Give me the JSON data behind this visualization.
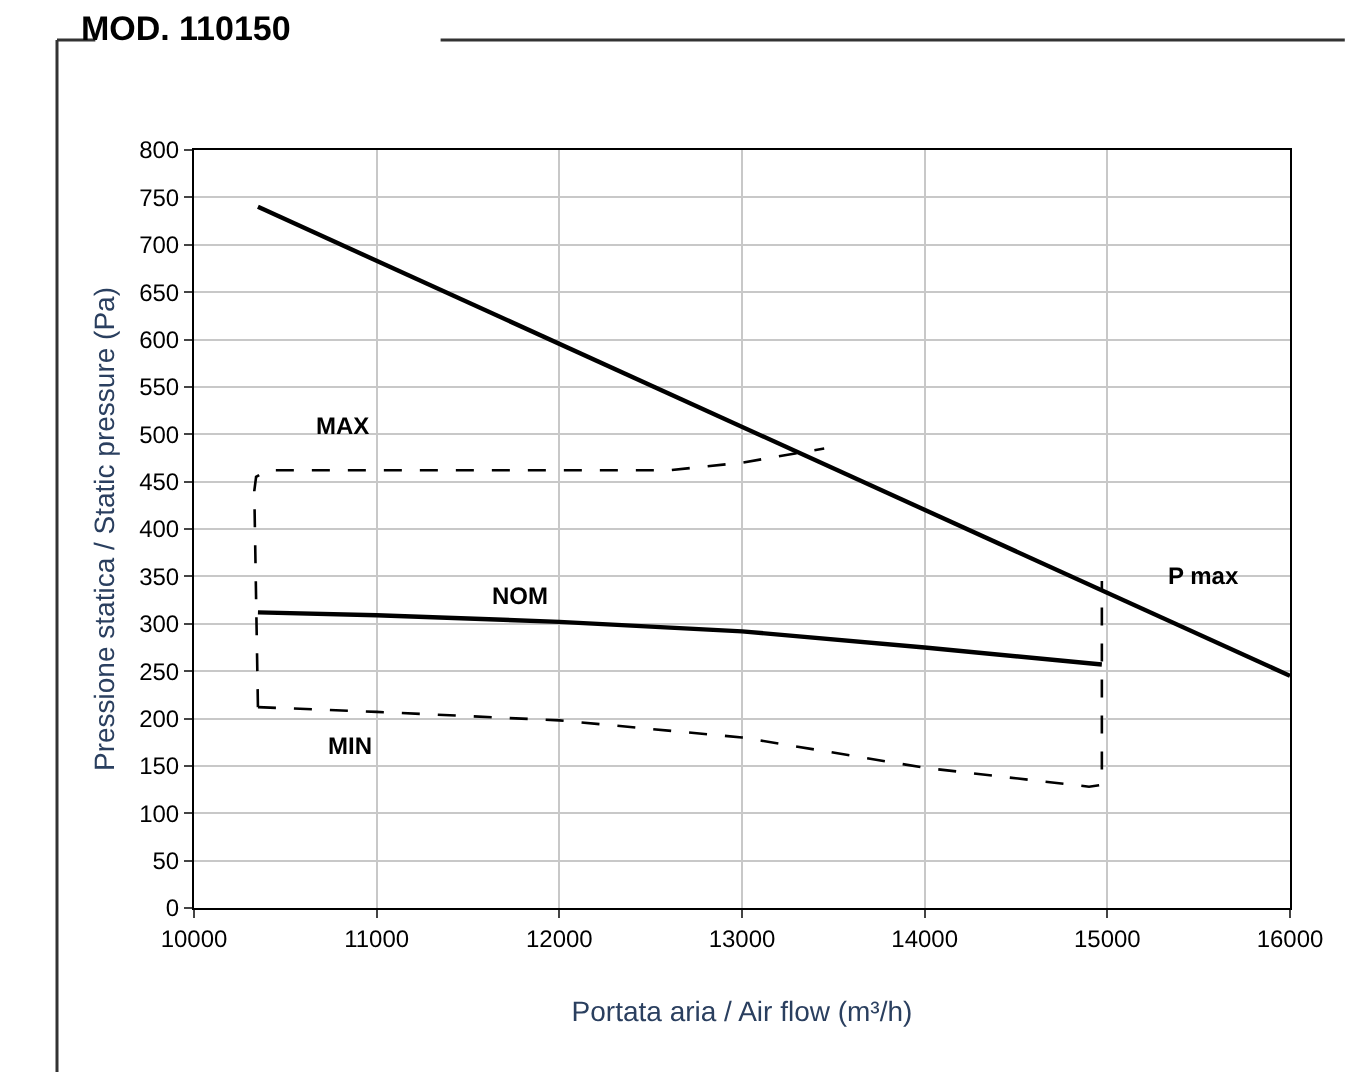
{
  "chart_data": {
    "type": "line",
    "title": "MOD. 110150",
    "xlabel": "Portata aria / Air flow (m³/h)",
    "ylabel": "Pressione statica / Static pressure (Pa)",
    "xlim": [
      10000,
      16000
    ],
    "xticks": [
      10000,
      11000,
      12000,
      13000,
      14000,
      15000,
      16000
    ],
    "ylim": [
      0,
      800
    ],
    "yticks": [
      0,
      50,
      100,
      150,
      200,
      250,
      300,
      350,
      400,
      450,
      500,
      550,
      600,
      650,
      700,
      750,
      800
    ],
    "grid": true,
    "legend": false,
    "marker": "none",
    "series": [
      {
        "name": "P max",
        "color": "#000000",
        "line_style": "solid",
        "x": [
          10350,
          16000
        ],
        "values": [
          740,
          245
        ]
      },
      {
        "name": "NOM",
        "color": "#000000",
        "line_style": "solid",
        "x": [
          10350,
          11000,
          12000,
          13000,
          14000,
          14970
        ],
        "values": [
          312,
          309,
          302,
          292,
          275,
          257
        ]
      },
      {
        "name": "MAX",
        "color": "#000000",
        "line_style": "dashed",
        "x": [
          10350,
          10330,
          10340,
          10400,
          11000,
          12000,
          12600,
          13000,
          13450
        ],
        "values": [
          212,
          440,
          455,
          462,
          462,
          462,
          462,
          470,
          485
        ]
      },
      {
        "name": "MIN",
        "color": "#000000",
        "line_style": "dashed",
        "x": [
          10350,
          11000,
          12000,
          13000,
          14000,
          14900,
          14970,
          14970
        ],
        "values": [
          212,
          207,
          198,
          180,
          148,
          128,
          130,
          345
        ]
      }
    ]
  }
}
